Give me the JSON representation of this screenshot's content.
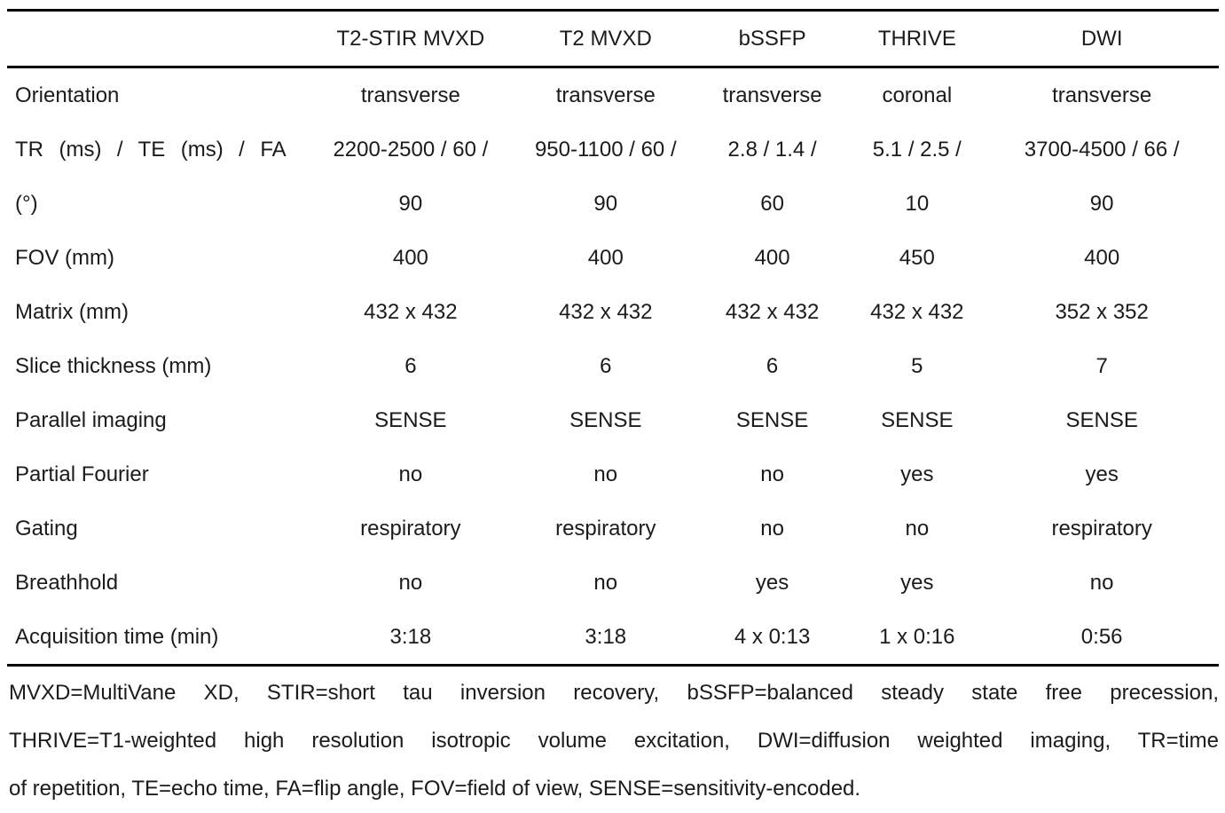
{
  "table": {
    "columns": [
      "T2-STIR MVXD",
      "T2 MVXD",
      "bSSFP",
      "THRIVE",
      "DWI"
    ],
    "rows": [
      {
        "label": "Orientation",
        "values": [
          "transverse",
          "transverse",
          "transverse",
          "coronal",
          "transverse"
        ]
      },
      {
        "label": "TR (ms) / TE (ms) / FA\n(°)",
        "values": [
          "2200-2500 / 60 /\n90",
          "950-1100 / 60 /\n90",
          "2.8 / 1.4 /\n60",
          "5.1 / 2.5 /\n10",
          "3700-4500 / 66 /\n90"
        ]
      },
      {
        "label": "FOV (mm)",
        "values": [
          "400",
          "400",
          "400",
          "450",
          "400"
        ]
      },
      {
        "label": "Matrix (mm)",
        "values": [
          "432 x 432",
          "432 x 432",
          "432 x 432",
          "432 x 432",
          "352 x 352"
        ]
      },
      {
        "label": "Slice thickness (mm)",
        "values": [
          "6",
          "6",
          "6",
          "5",
          "7"
        ]
      },
      {
        "label": "Parallel imaging",
        "values": [
          "SENSE",
          "SENSE",
          "SENSE",
          "SENSE",
          "SENSE"
        ]
      },
      {
        "label": "Partial Fourier",
        "values": [
          "no",
          "no",
          "no",
          "yes",
          "yes"
        ]
      },
      {
        "label": "Gating",
        "values": [
          "respiratory",
          "respiratory",
          "no",
          "no",
          "respiratory"
        ]
      },
      {
        "label": "Breathhold",
        "values": [
          "no",
          "no",
          "yes",
          "yes",
          "no"
        ]
      },
      {
        "label": "Acquisition time (min)",
        "values": [
          "3:18",
          "3:18",
          "4 x 0:13",
          "1 x 0:16",
          "0:56"
        ]
      }
    ],
    "footnote_lines": [
      "MVXD=MultiVane XD, STIR=short tau inversion recovery, bSSFP=balanced steady state free precession,",
      "THRIVE=T1-weighted high resolution isotropic volume excitation, DWI=diffusion weighted imaging, TR=time",
      "of repetition, TE=echo time, FA=flip angle, FOV=field of view, SENSE=sensitivity-encoded."
    ]
  }
}
